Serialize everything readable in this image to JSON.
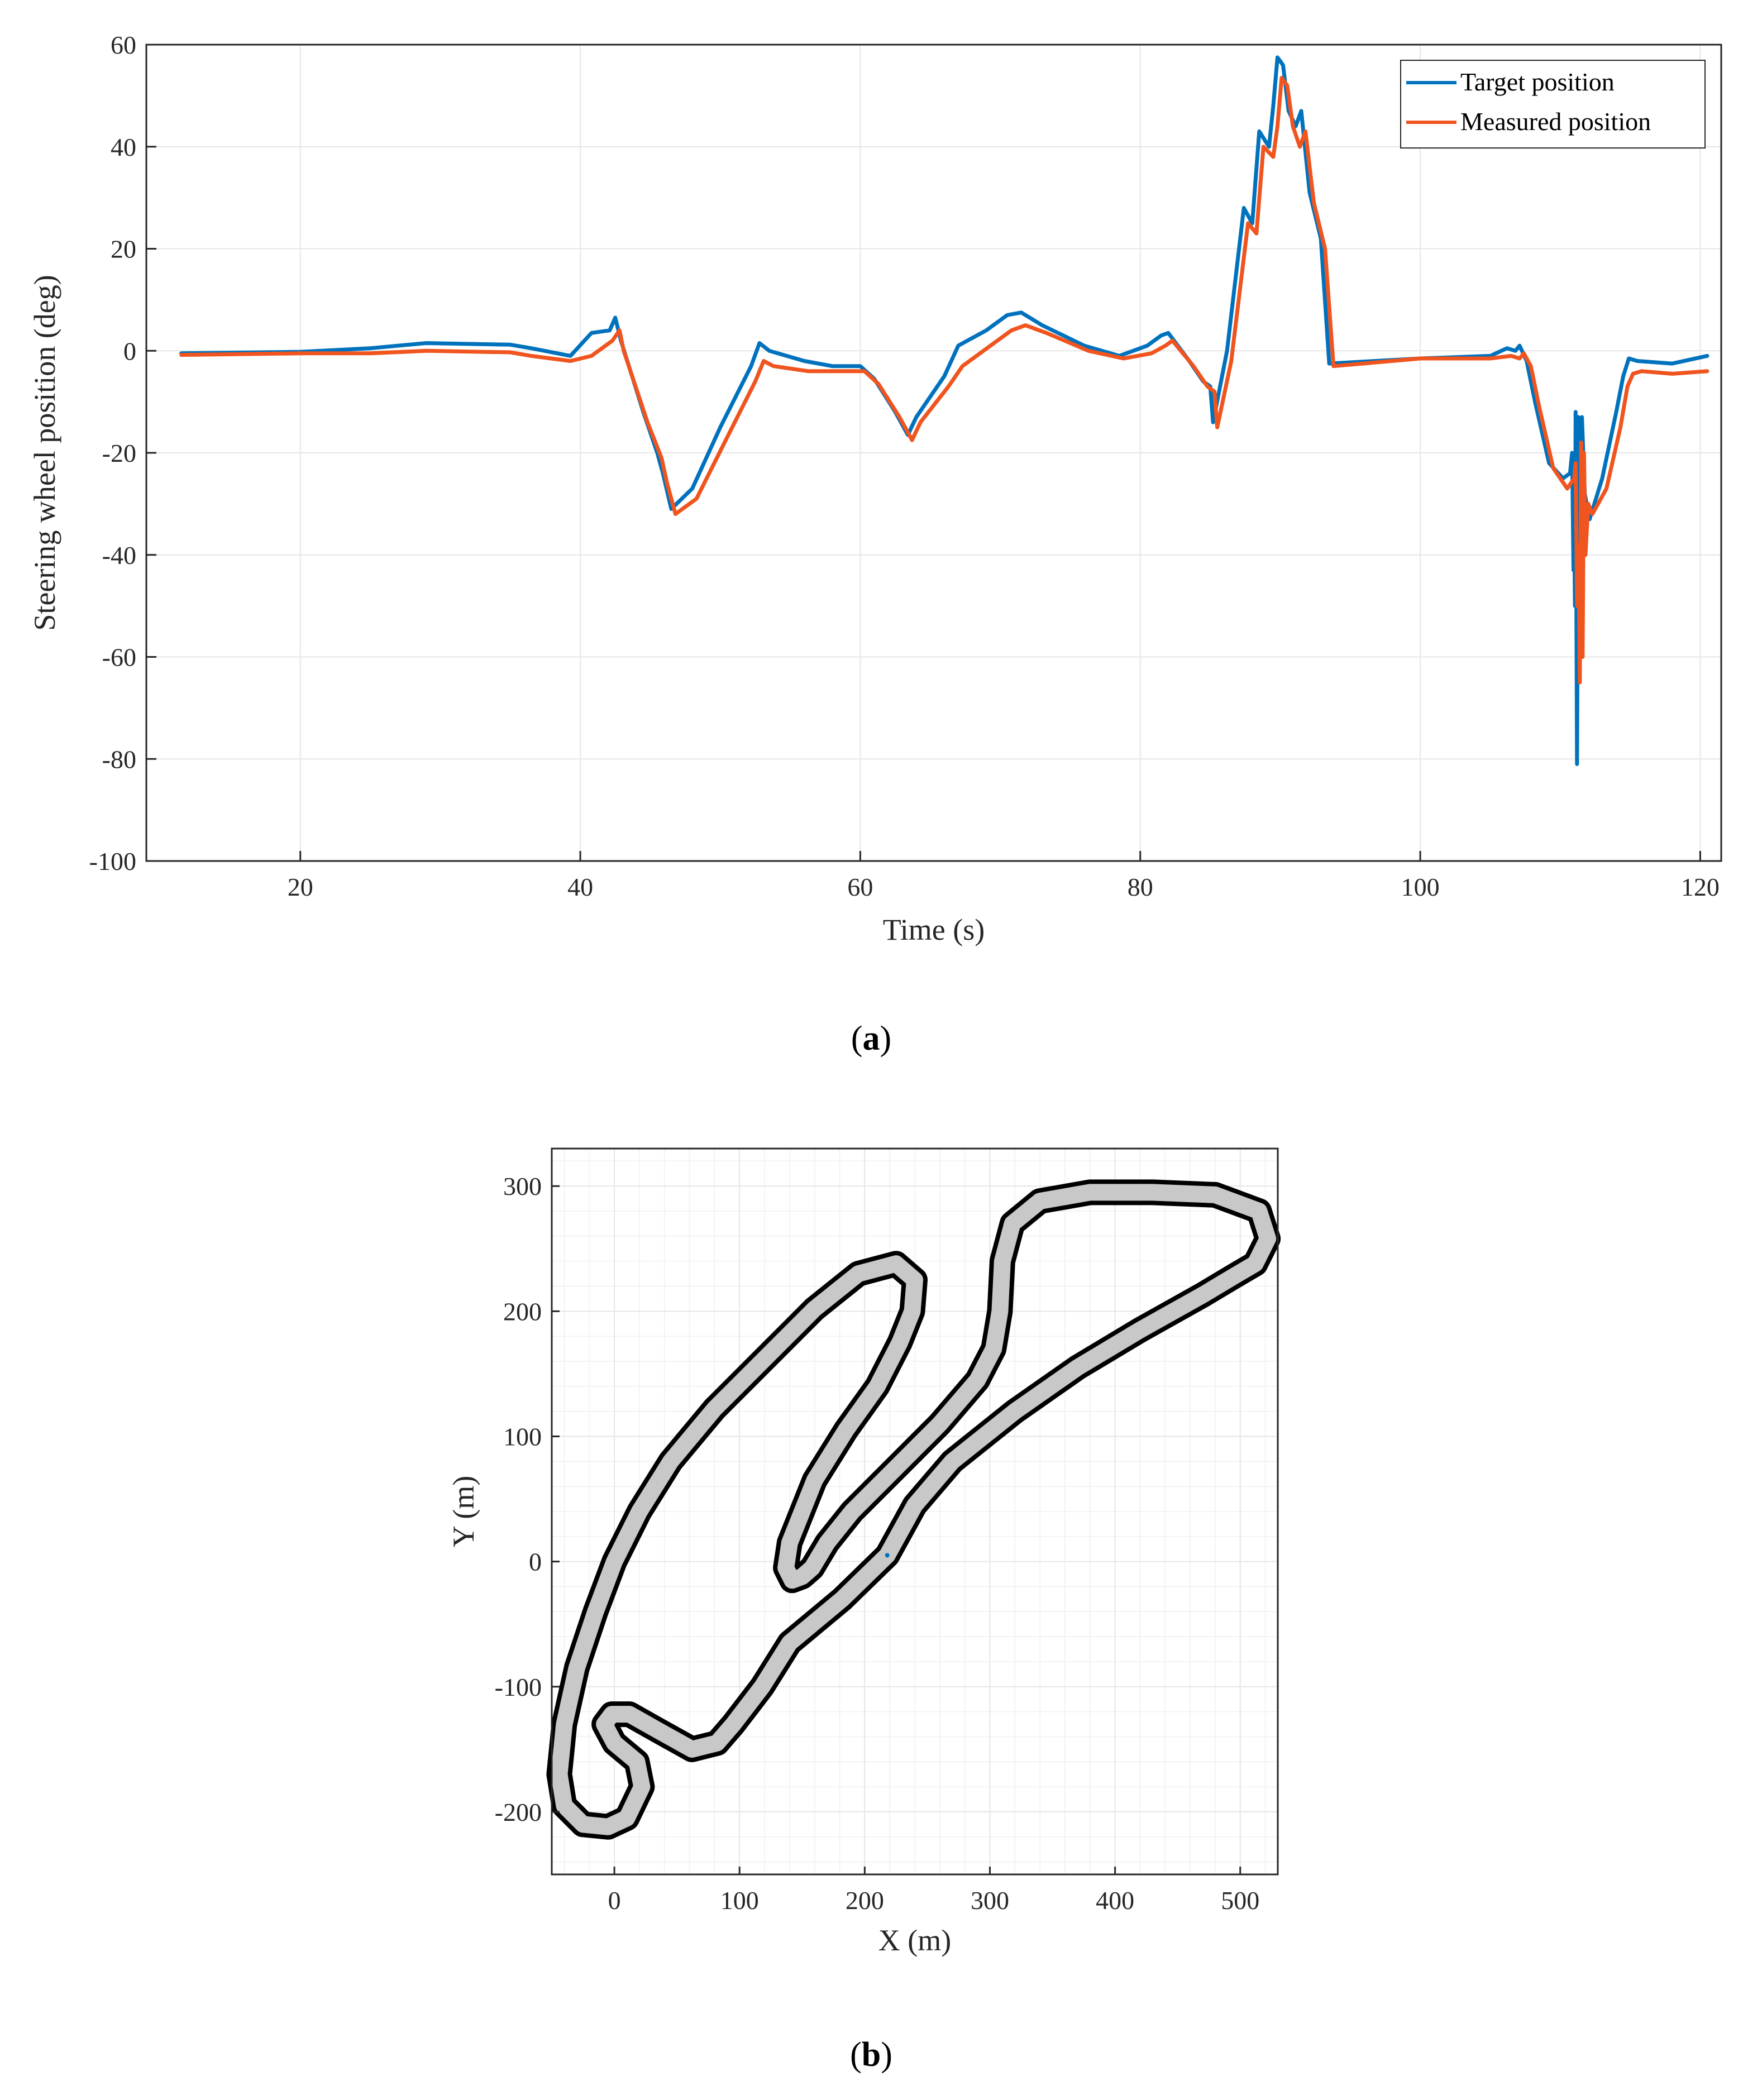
{
  "panel_a": {
    "caption_open": "(",
    "caption_letter": "a",
    "caption_close": ")"
  },
  "panel_b": {
    "caption_open": "(",
    "caption_letter": "b",
    "caption_close": ")"
  },
  "colors": {
    "target": "#0072BD",
    "measured": "#F0541F",
    "track_fill": "#c8c8c8",
    "track_edge": "#000000",
    "grid": "#e6e6e6",
    "minor_grid": "#f0f0f0"
  },
  "chart_data": [
    {
      "type": "line",
      "title": "",
      "xlabel": "Time (s)",
      "ylabel": "Steering wheel position (deg)",
      "xlim": [
        9,
        121.5
      ],
      "ylim": [
        -100,
        60
      ],
      "xticks": [
        20,
        40,
        60,
        80,
        100,
        120
      ],
      "yticks": [
        -100,
        -80,
        -60,
        -40,
        -20,
        0,
        20,
        40,
        60
      ],
      "grid": true,
      "legend": "top-right",
      "series": [
        {
          "name": "Target position",
          "x": [
            11.5,
            20,
            25,
            29,
            35,
            36.5,
            39.3,
            40.8,
            42.1,
            42.5,
            42.9,
            44.5,
            45.5,
            45.9,
            46.5,
            48,
            50,
            52.2,
            52.8,
            53.5,
            56,
            58,
            60,
            61,
            62.5,
            63.4,
            64,
            66,
            67,
            69,
            70.5,
            71.5,
            73,
            76,
            78.5,
            80.5,
            81.5,
            82,
            83.5,
            84.5,
            85,
            85.2,
            86.2,
            87.4,
            88,
            88.5,
            89.2,
            89.5,
            89.8,
            90.2,
            90.6,
            91.1,
            91.5,
            92.1,
            92.9,
            93.5,
            100,
            105,
            106.2,
            106.8,
            107.1,
            107.6,
            108.2,
            109.2,
            110.2,
            110.7,
            110.85,
            110.95,
            111.0,
            111.05,
            111.1,
            111.2,
            111.3,
            111.4,
            111.55,
            111.75,
            112.1,
            113,
            114,
            114.5,
            114.9,
            115.5,
            118,
            120.5
          ],
          "y": [
            -0.5,
            -0.2,
            0.5,
            1.5,
            1.2,
            0.5,
            -1,
            3.5,
            4,
            6.5,
            2,
            -12,
            -20,
            -24,
            -31,
            -27,
            -15,
            -3,
            1.5,
            0,
            -2,
            -3,
            -3,
            -5.5,
            -12,
            -16.5,
            -13,
            -5,
            1,
            4,
            7,
            7.5,
            5,
            1,
            -1,
            1,
            3,
            3.5,
            -2,
            -6,
            -7,
            -14,
            0,
            28,
            25,
            43,
            40,
            48,
            57.5,
            56,
            47,
            44,
            47,
            31,
            22,
            -2.5,
            -1.5,
            -1,
            0.5,
            0,
            1,
            -2,
            -10,
            -22,
            -25,
            -24,
            -20,
            -43,
            -35,
            -50,
            -12,
            -81,
            -13,
            -45,
            -13,
            -28,
            -33,
            -25,
            -12,
            -5,
            -1.5,
            -2,
            -2.5,
            -1
          ]
        },
        {
          "name": "Measured position",
          "x": [
            11.5,
            20,
            25,
            29,
            35,
            36.5,
            39.3,
            40.8,
            42.3,
            42.8,
            43.1,
            44.8,
            45.8,
            46.2,
            46.8,
            48.3,
            50.3,
            52.5,
            53.1,
            53.8,
            56.3,
            58.3,
            60.3,
            61.3,
            62.8,
            63.7,
            64.3,
            66.3,
            67.3,
            69.3,
            70.8,
            71.8,
            73.3,
            76.3,
            78.8,
            80.8,
            81.8,
            82.3,
            83.8,
            84.8,
            85.3,
            85.5,
            86.5,
            87.7,
            88.3,
            88.8,
            89.5,
            89.8,
            90.1,
            90.5,
            90.9,
            91.4,
            91.8,
            92.4,
            93.2,
            93.8,
            100,
            105,
            106.5,
            107.1,
            107.4,
            107.9,
            108.5,
            109.5,
            110.5,
            111.0,
            111.1,
            111.2,
            111.3,
            111.4,
            111.5,
            111.6,
            111.7,
            111.8,
            112.0,
            112.3,
            113.3,
            114.3,
            114.8,
            115.2,
            115.8,
            118,
            120.5
          ],
          "y": [
            -0.8,
            -0.5,
            -0.5,
            0,
            -0.3,
            -1,
            -2,
            -1,
            2,
            4,
            0,
            -14,
            -21,
            -26,
            -32,
            -29,
            -18,
            -6,
            -2,
            -3,
            -4,
            -4,
            -4,
            -6.5,
            -13,
            -17.5,
            -14,
            -7,
            -3,
            1,
            4,
            5,
            3.5,
            0,
            -1.5,
            -0.5,
            1,
            2,
            -3,
            -7,
            -8,
            -15,
            -2,
            25,
            23,
            40,
            38,
            44,
            53.5,
            52,
            44,
            40,
            43,
            29,
            20,
            -3,
            -1.5,
            -1.5,
            -1,
            -1.5,
            -0.5,
            -3,
            -11,
            -23,
            -27,
            -25,
            -22,
            -50,
            -38,
            -65,
            -18,
            -60,
            -20,
            -40,
            -30,
            -32,
            -27,
            -15,
            -7,
            -4.5,
            -4,
            -4.5,
            -4
          ]
        }
      ]
    },
    {
      "type": "line",
      "title": "",
      "xlabel": "X (m)",
      "ylabel": "Y (m)",
      "xlim": [
        -50,
        530
      ],
      "ylim": [
        -250,
        330
      ],
      "xticks": [
        0,
        100,
        200,
        300,
        400,
        500
      ],
      "yticks": [
        -200,
        -100,
        0,
        100,
        200,
        300
      ],
      "grid": true,
      "legend": "none",
      "series": [
        {
          "x": [
            218,
            182,
            140,
            118,
            95,
            82,
            62,
            35,
            12,
            -2,
            -8,
            0,
            18,
            22,
            10,
            -5,
            -25,
            -40,
            -44,
            -40,
            -30,
            -15,
            0,
            20,
            45,
            80,
            120,
            160,
            195,
            225,
            240,
            238,
            228,
            210,
            185,
            160,
            140,
            137,
            142,
            150,
            158,
            170,
            190,
            225,
            260,
            290,
            303,
            308,
            310,
            318,
            340,
            380,
            430,
            480,
            515,
            522,
            512,
            495,
            470,
            420,
            370,
            320,
            270,
            240,
            218
          ],
          "y": [
            5,
            -30,
            -65,
            -100,
            -130,
            -145,
            -150,
            -135,
            -122,
            -122,
            -130,
            -145,
            -160,
            -180,
            -205,
            -212,
            -210,
            -195,
            -170,
            -130,
            -85,
            -40,
            0,
            40,
            80,
            122,
            162,
            202,
            230,
            238,
            225,
            200,
            175,
            140,
            105,
            65,
            15,
            -5,
            -15,
            -12,
            -5,
            15,
            40,
            75,
            110,
            145,
            170,
            200,
            240,
            270,
            288,
            295,
            295,
            293,
            280,
            258,
            238,
            228,
            213,
            185,
            155,
            120,
            80,
            45,
            5
          ]
        }
      ]
    }
  ]
}
